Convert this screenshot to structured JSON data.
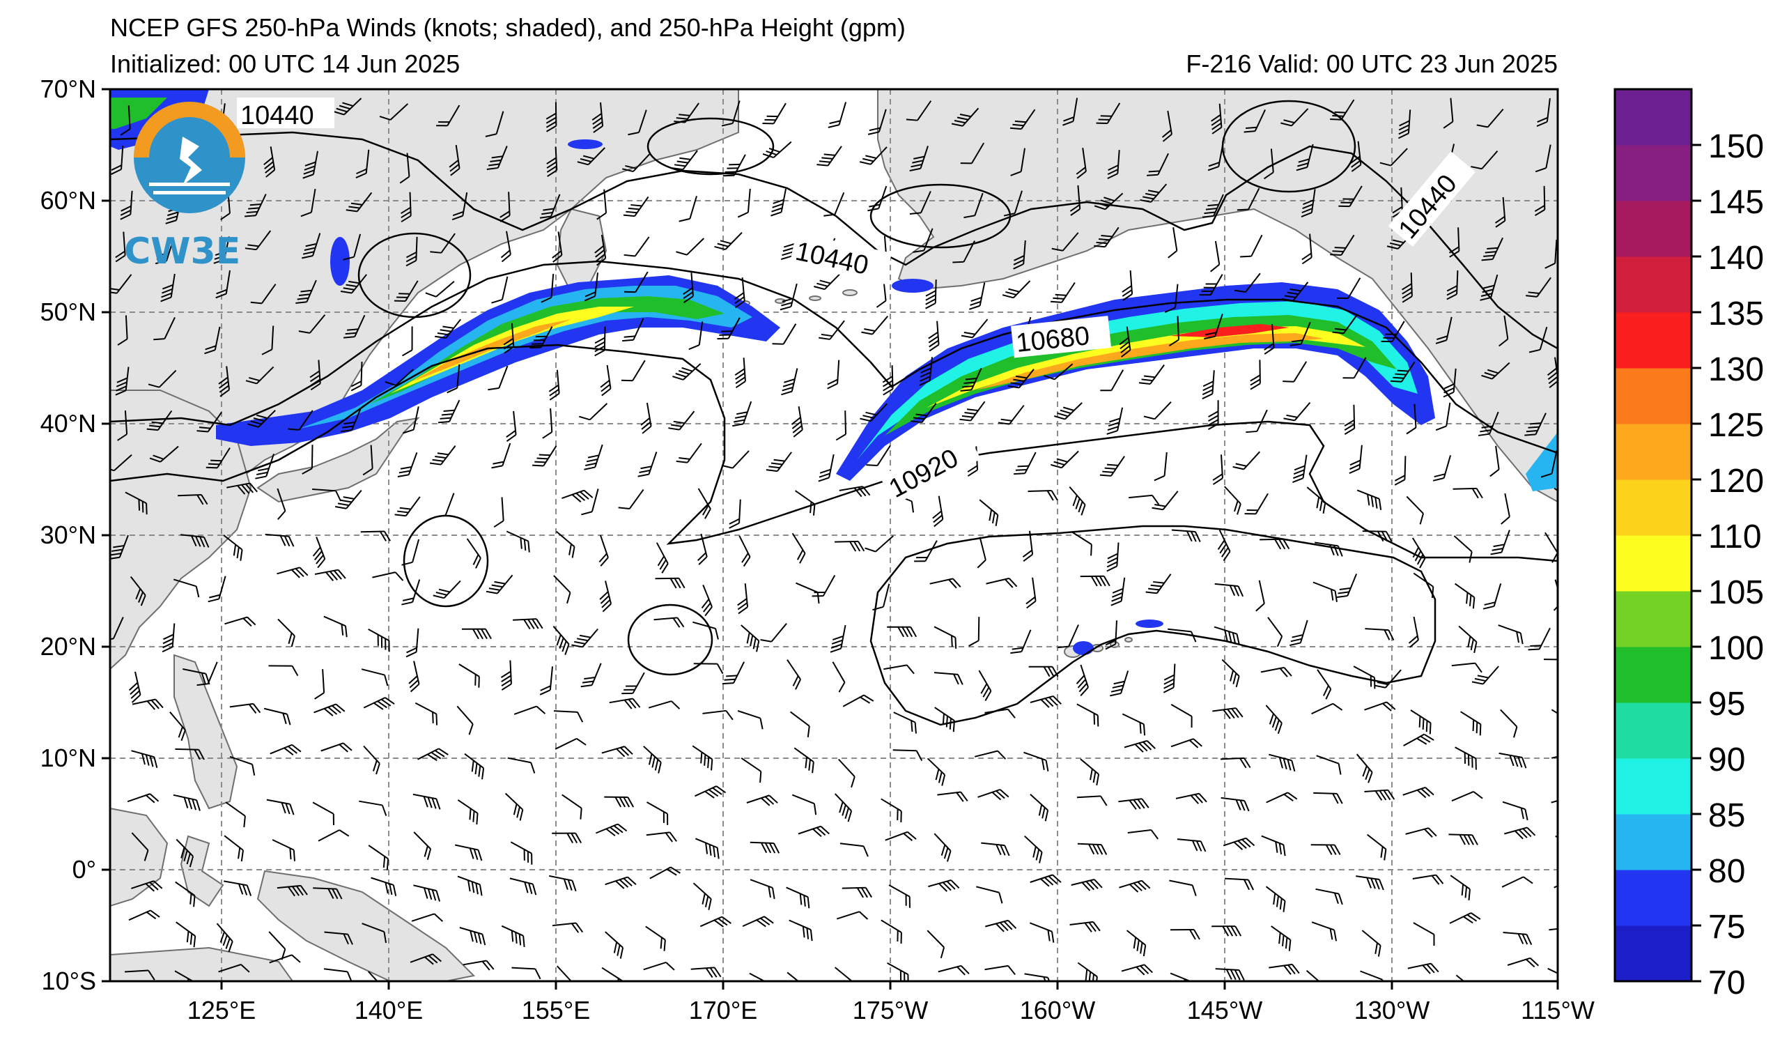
{
  "header": {
    "title": "NCEP GFS 250-hPa Winds (knots; shaded), and 250-hPa Height (gpm)",
    "init": "Initialized: 00 UTC 14 Jun 2025",
    "valid": "F-216  Valid: 00 UTC 23 Jun 2025"
  },
  "logo": {
    "text": "CW3E"
  },
  "map": {
    "lon_labels": [
      "125°E",
      "140°E",
      "155°E",
      "170°E",
      "175°W",
      "160°W",
      "145°W",
      "130°W",
      "115°W"
    ],
    "lat_labels": [
      "70°N",
      "60°N",
      "50°N",
      "40°N",
      "30°N",
      "20°N",
      "10°N",
      "0°",
      "10°S"
    ],
    "contour_labels": [
      "10440",
      "10440",
      "10440",
      "10680",
      "10920"
    ],
    "colors": {
      "land": "#e3e3e3",
      "coast": "#6e6e6e",
      "grid": "#8c8c8c"
    }
  },
  "colorbar": {
    "tick_labels": [
      "150",
      "145",
      "140",
      "135",
      "130",
      "125",
      "120",
      "110",
      "105",
      "100",
      "95",
      "90",
      "85",
      "80",
      "75",
      "70"
    ],
    "colors": [
      "#1c1fc8",
      "#2236f2",
      "#27b5f2",
      "#20f2e6",
      "#1fdca2",
      "#1fbe2a",
      "#75d325",
      "#fdfd20",
      "#fdd21b",
      "#fda81d",
      "#fb7a1c",
      "#fc1f1f",
      "#d31f3e",
      "#a71a5e",
      "#871f80",
      "#6c1f90"
    ]
  }
}
